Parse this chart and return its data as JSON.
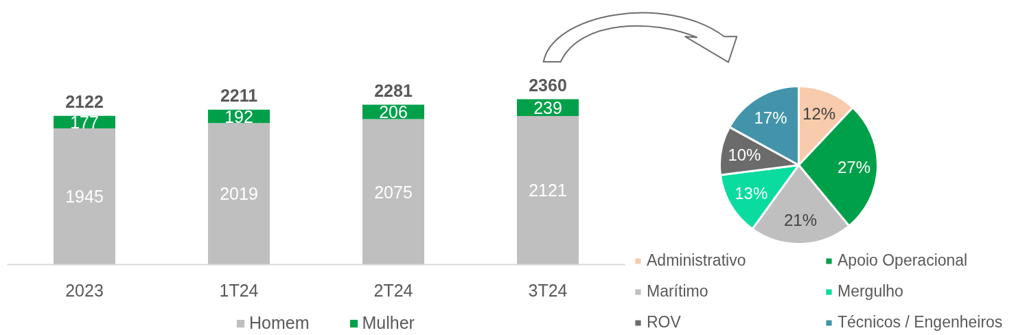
{
  "chart_data": [
    {
      "type": "bar",
      "categories": [
        "2023",
        "1T24",
        "2T24",
        "3T24"
      ],
      "stacked": true,
      "series": [
        {
          "name": "Homem",
          "color": "#bfbfbf",
          "values": [
            1945,
            2019,
            2075,
            2121
          ]
        },
        {
          "name": "Mulher",
          "color": "#00a04a",
          "values": [
            177,
            192,
            206,
            239
          ]
        }
      ],
      "totals": [
        "2122",
        "2211",
        "2281",
        "2360"
      ],
      "data_labels": true,
      "tick_labels": "x",
      "legend": "bottom"
    },
    {
      "type": "pie",
      "categories": [
        "Administrativo",
        "Apoio Operacional",
        "Marítimo",
        "Mergulho",
        "ROV",
        "Técnicos / Engenheiros"
      ],
      "values": [
        12,
        27,
        21,
        13,
        10,
        17
      ],
      "value_labels": [
        "12%",
        "27%",
        "21%",
        "13%",
        "10%",
        "17%"
      ],
      "colors": [
        "#f8cbad",
        "#00a04a",
        "#bfbfbf",
        "#0adca0",
        "#6b6b6b",
        "#4394aa"
      ],
      "legend": "bottom"
    }
  ]
}
